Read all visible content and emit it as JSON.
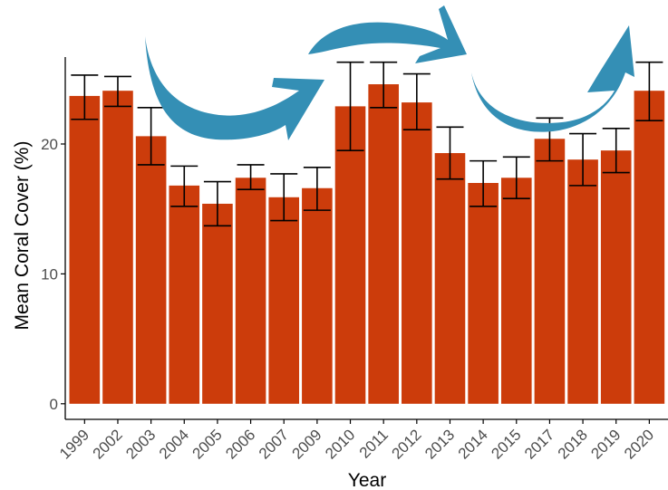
{
  "chart_data": {
    "type": "bar",
    "categories": [
      "1999",
      "2002",
      "2003",
      "2004",
      "2005",
      "2006",
      "2007",
      "2009",
      "2010",
      "2011",
      "2012",
      "2013",
      "2014",
      "2015",
      "2017",
      "2018",
      "2019",
      "2020"
    ],
    "series": [
      {
        "values": [
          23.7,
          24.1,
          20.6,
          16.8,
          15.4,
          17.4,
          15.9,
          16.6,
          22.9,
          24.6,
          23.2,
          19.3,
          17.0,
          17.4,
          20.4,
          18.8,
          19.5,
          24.1
        ],
        "error_low": [
          21.9,
          22.9,
          18.4,
          15.2,
          13.7,
          16.5,
          14.1,
          14.9,
          19.5,
          22.8,
          21.1,
          17.3,
          15.2,
          15.8,
          18.7,
          16.8,
          17.8,
          21.8
        ],
        "error_high": [
          25.3,
          25.2,
          22.8,
          18.3,
          17.1,
          18.4,
          17.7,
          18.2,
          26.3,
          26.3,
          25.4,
          21.3,
          18.7,
          19.0,
          22.0,
          20.8,
          21.2,
          26.3
        ]
      }
    ],
    "xlabel": "Year",
    "ylabel": "Mean Coral Cover (%)",
    "yticks": [
      0,
      10,
      20
    ],
    "ylim": [
      -1.2,
      27.6
    ],
    "grid": false,
    "colors": {
      "bar": "#CC3C0B",
      "error_bar": "#000000",
      "arrow": "#348FB5",
      "axis": "#000000",
      "tick_label": "#4d4d4d"
    },
    "decorations": {
      "arrows": 3,
      "arrow_shape": "curved",
      "arrow_color_name": "blue"
    }
  }
}
